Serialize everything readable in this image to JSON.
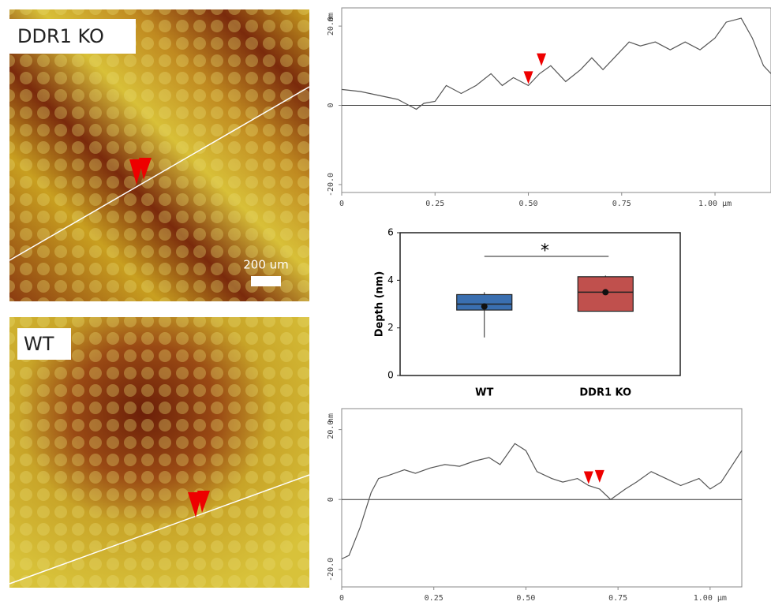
{
  "images": [
    {
      "label": "DDR1 KO",
      "scale_bar": "200 um"
    },
    {
      "label": "WT"
    }
  ],
  "chart_data": [
    {
      "type": "line",
      "ylabel": "nm",
      "color": "#555555",
      "x": [
        0,
        0.05,
        0.1,
        0.15,
        0.2,
        0.22,
        0.25,
        0.28,
        0.32,
        0.36,
        0.4,
        0.43,
        0.46,
        0.5,
        0.53,
        0.56,
        0.6,
        0.64,
        0.67,
        0.7,
        0.73,
        0.77,
        0.8,
        0.84,
        0.88,
        0.92,
        0.96,
        1.0,
        1.03,
        1.07,
        1.1,
        1.13,
        1.15
      ],
      "values": [
        4,
        3.5,
        2.5,
        1.5,
        -1,
        0.5,
        1,
        5,
        3,
        5,
        8,
        5,
        7,
        5,
        8,
        10,
        6,
        9,
        12,
        9,
        12,
        16,
        15,
        16,
        14,
        16,
        14,
        17,
        21,
        22,
        17,
        10,
        8
      ],
      "cursor_x": [
        0.5,
        0.535
      ],
      "xlim": [
        0,
        1.15
      ],
      "ylim": [
        -22,
        24.6
      ],
      "xticks": [
        0,
        0.25,
        {
          "value": 0.5,
          "label": "0.50"
        },
        0.75,
        {
          "value": 1,
          "label": "1.00 µm"
        }
      ],
      "yticks": [
        {
          "value": -20,
          "label": "-20.0"
        },
        0,
        {
          "value": 20,
          "label": "20.0"
        }
      ]
    },
    {
      "type": "box",
      "ylabel": "Depth (nm)",
      "categories": [
        "WT",
        "DDR1 KO"
      ],
      "annotation": "*",
      "boxes": [
        {
          "min": 1.6,
          "q1": 2.75,
          "median": 3.0,
          "q3": 3.4,
          "max": 3.5,
          "mean": 2.9,
          "color": "#3a6fb0"
        },
        {
          "min": 2.7,
          "q1": 2.7,
          "median": 3.5,
          "q3": 4.15,
          "max": 4.2,
          "mean": 3.5,
          "color": "#c0504d"
        }
      ],
      "ylim": [
        0,
        6
      ],
      "yticks": [
        0,
        2,
        4,
        6
      ]
    },
    {
      "type": "line",
      "ylabel": "nm",
      "color": "#555555",
      "x": [
        0,
        0.02,
        0.05,
        0.08,
        0.1,
        0.13,
        0.17,
        0.2,
        0.24,
        0.28,
        0.32,
        0.36,
        0.4,
        0.43,
        0.47,
        0.5,
        0.53,
        0.57,
        0.6,
        0.64,
        0.67,
        0.7,
        0.73,
        0.77,
        0.8,
        0.84,
        0.88,
        0.92,
        0.97,
        1.0,
        1.03,
        1.086
      ],
      "values": [
        -17,
        -16,
        -8,
        2,
        6,
        7,
        8.5,
        7.5,
        9,
        10,
        9.5,
        11,
        12,
        10,
        16,
        14,
        8,
        6,
        5,
        6,
        4,
        3,
        0,
        3,
        5,
        8,
        6,
        4,
        6,
        3,
        5,
        14
      ],
      "cursor_x": [
        0.67,
        0.7
      ],
      "xlim": [
        0,
        1.086
      ],
      "ylim": [
        -25,
        26
      ],
      "xticks": [
        0,
        0.25,
        {
          "value": 0.5,
          "label": "0.50"
        },
        0.75,
        {
          "value": 1,
          "label": "1.00 µm"
        }
      ],
      "yticks": [
        {
          "value": -20,
          "label": "-20.0"
        },
        0,
        {
          "value": 20,
          "label": "20.0"
        }
      ]
    }
  ]
}
